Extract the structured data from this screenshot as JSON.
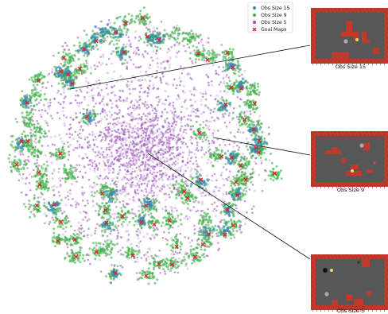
{
  "chart_data": {
    "type": "scatter",
    "title": "",
    "xlabel": "",
    "ylabel": "",
    "grid": false,
    "legend_position": "top-right",
    "series": [
      {
        "name": "Obs Size 15",
        "color": "#3a86b8",
        "marker": "circle",
        "region": "outer clusters"
      },
      {
        "name": "Obs Size 9",
        "color": "#3cb043",
        "marker": "circle",
        "region": "outer clusters"
      },
      {
        "name": "Obs Size 5",
        "color": "#9b4fb8",
        "marker": "circle",
        "region": "dense central cloud"
      },
      {
        "name": "Goal Maps",
        "color": "#e0202a",
        "marker": "x",
        "region": "cluster centers"
      }
    ],
    "insets": [
      {
        "label": "Obs Size 15",
        "points_to": "outer left cluster"
      },
      {
        "label": "Obs Size 9",
        "points_to": "right-center region"
      },
      {
        "label": "Obs Size 5",
        "points_to": "central cloud"
      }
    ]
  }
}
